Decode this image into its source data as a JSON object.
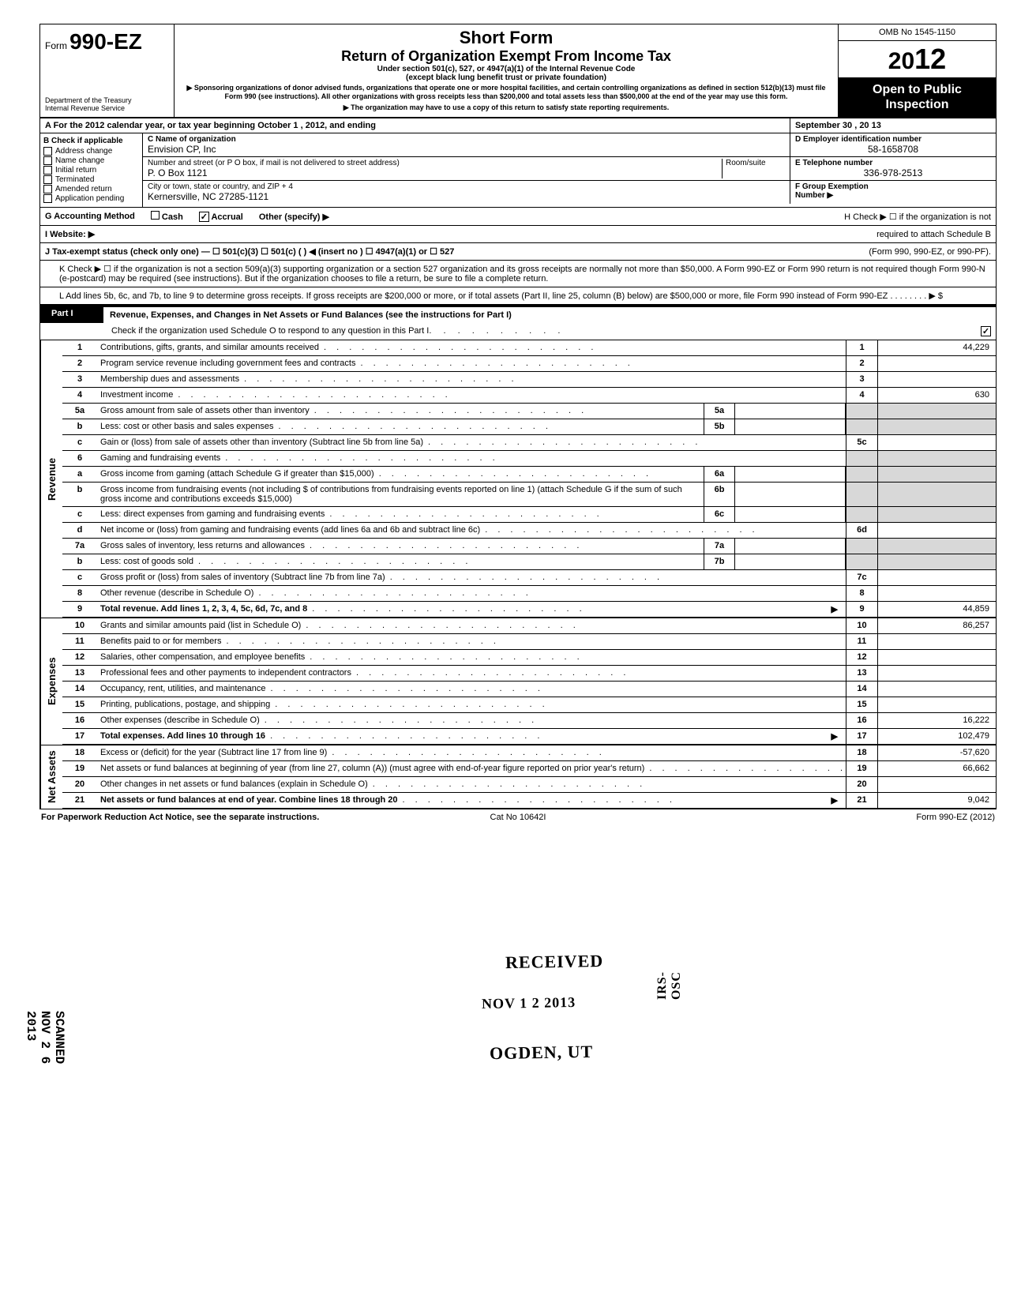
{
  "header": {
    "form_prefix": "Form",
    "form_number": "990-EZ",
    "dept1": "Department of the Treasury",
    "dept2": "Internal Revenue Service",
    "title1": "Short Form",
    "title2": "Return of Organization Exempt From Income Tax",
    "subtitle1": "Under section 501(c), 527, or 4947(a)(1) of the Internal Revenue Code",
    "subtitle2": "(except black lung benefit trust or private foundation)",
    "fineprint": "▶ Sponsoring organizations of donor advised funds, organizations that operate one or more hospital facilities, and certain controlling organizations as defined in section 512(b)(13) must file Form 990 (see instructions). All other organizations with gross receipts less than $200,000 and total assets less than $500,000 at the end of the year may use this form.",
    "satisfy": "▶ The organization may have to use a copy of this return to satisfy state reporting requirements.",
    "omb": "OMB No 1545-1150",
    "year_prefix": "20",
    "year_bold": "12",
    "open1": "Open to Public",
    "open2": "Inspection"
  },
  "rowA": {
    "left": "A  For the 2012 calendar year, or tax year beginning                    October 1               , 2012, and ending",
    "right": "September 30            , 20     13"
  },
  "colB": {
    "header": "B  Check if applicable",
    "items": [
      "Address change",
      "Name change",
      "Initial return",
      "Terminated",
      "Amended return",
      "Application pending"
    ]
  },
  "org": {
    "c_label": "C  Name of organization",
    "c_value": "Envision CP, Inc",
    "d_label": "D  Employer identification number",
    "d_value": "58-1658708",
    "addr_label": "Number and street (or P O  box, if mail is not delivered to street address)",
    "addr_value": "P. O  Box 1121",
    "room_label": "Room/suite",
    "e_label": "E  Telephone number",
    "e_value": "336-978-2513",
    "city_label": "City or town, state or country, and ZIP + 4",
    "city_value": "Kernersville, NC 27285-1121",
    "f_label": "F  Group Exemption",
    "f_label2": "Number  ▶"
  },
  "rowG": {
    "g": "G  Accounting Method",
    "cash": "Cash",
    "accrual": "Accrual",
    "other": "Other (specify) ▶",
    "h": "H  Check ▶ ☐ if the organization is not"
  },
  "rowI": {
    "i": "I   Website: ▶",
    "h2": "required to attach Schedule B"
  },
  "rowJ": {
    "j": "J  Tax-exempt status (check only one) —  ☐ 501(c)(3)    ☐ 501(c) (          )  ◀ (insert no ) ☐ 4947(a)(1) or      ☐ 527",
    "j2": "(Form 990, 990-EZ, or 990-PF)."
  },
  "rowK": "K  Check ▶   ☐   if the organization is not a section 509(a)(3) supporting organization or a section 527 organization and its gross receipts are normally not more than $50,000. A Form 990-EZ or Form 990 return is not required though Form 990-N (e-postcard) may be required (see instructions). But if the organization chooses to file a return, be sure to file a complete return.",
  "rowL": "L  Add lines 5b, 6c, and 7b, to line 9 to determine gross receipts. If gross receipts are $200,000 or more, or if total assets (Part II, line 25, column (B) below) are $500,000 or more, file Form 990 instead of Form 990-EZ     .     .     .     .     .     .     .     .     ▶  $",
  "part1": {
    "label": "Part I",
    "title": "Revenue, Expenses, and Changes in Net Assets or Fund Balances (see the instructions for Part I)",
    "check_o": "Check if the organization used Schedule O to respond to any question in this Part I"
  },
  "sections": {
    "revenue": "Revenue",
    "expenses": "Expenses",
    "netassets": "Net Assets"
  },
  "lines": [
    {
      "no": "1",
      "desc": "Contributions, gifts, grants, and similar amounts received",
      "end_no": "1",
      "end_val": "44,229"
    },
    {
      "no": "2",
      "desc": "Program service revenue including government fees and contracts",
      "end_no": "2",
      "end_val": ""
    },
    {
      "no": "3",
      "desc": "Membership dues and assessments",
      "end_no": "3",
      "end_val": ""
    },
    {
      "no": "4",
      "desc": "Investment income",
      "end_no": "4",
      "end_val": "630"
    },
    {
      "no": "5a",
      "desc": "Gross amount from sale of assets other than inventory",
      "mid_no": "5a",
      "shaded": true
    },
    {
      "no": "b",
      "desc": "Less: cost or other basis and sales expenses",
      "mid_no": "5b",
      "shaded": true
    },
    {
      "no": "c",
      "desc": "Gain or (loss) from sale of assets other than inventory (Subtract line 5b from line 5a)",
      "end_no": "5c",
      "end_val": ""
    },
    {
      "no": "6",
      "desc": "Gaming and fundraising events",
      "shaded": true,
      "shaded_full": true
    },
    {
      "no": "a",
      "desc": "Gross income from gaming (attach Schedule G if greater than $15,000)",
      "mid_no": "6a",
      "shaded": true
    },
    {
      "no": "b",
      "desc": "Gross income from fundraising events (not including  $                       of contributions from fundraising events reported on line 1) (attach Schedule G if the sum of such gross income and contributions exceeds $15,000)",
      "mid_no": "6b",
      "shaded": true
    },
    {
      "no": "c",
      "desc": "Less: direct expenses from gaming and fundraising events",
      "mid_no": "6c",
      "shaded": true
    },
    {
      "no": "d",
      "desc": "Net income or (loss) from gaming and fundraising events (add lines 6a and 6b and subtract line 6c)",
      "end_no": "6d",
      "end_val": ""
    },
    {
      "no": "7a",
      "desc": "Gross sales of inventory, less returns and allowances",
      "mid_no": "7a",
      "shaded": true
    },
    {
      "no": "b",
      "desc": "Less: cost of goods sold",
      "mid_no": "7b",
      "shaded": true
    },
    {
      "no": "c",
      "desc": "Gross profit or (loss) from sales of inventory (Subtract line 7b from line 7a)",
      "end_no": "7c",
      "end_val": ""
    },
    {
      "no": "8",
      "desc": "Other revenue (describe in Schedule O)",
      "end_no": "8",
      "end_val": ""
    },
    {
      "no": "9",
      "desc": "Total revenue. Add lines 1, 2, 3, 4, 5c, 6d, 7c, and 8",
      "end_no": "9",
      "end_val": "44,859",
      "bold": true,
      "arrow": true
    }
  ],
  "exp_lines": [
    {
      "no": "10",
      "desc": "Grants and similar amounts paid (list in Schedule O)",
      "end_no": "10",
      "end_val": "86,257"
    },
    {
      "no": "11",
      "desc": "Benefits paid to or for members",
      "end_no": "11",
      "end_val": ""
    },
    {
      "no": "12",
      "desc": "Salaries, other compensation, and employee benefits",
      "end_no": "12",
      "end_val": ""
    },
    {
      "no": "13",
      "desc": "Professional fees and other payments to independent contractors",
      "end_no": "13",
      "end_val": ""
    },
    {
      "no": "14",
      "desc": "Occupancy, rent, utilities, and maintenance",
      "end_no": "14",
      "end_val": ""
    },
    {
      "no": "15",
      "desc": "Printing, publications, postage, and shipping",
      "end_no": "15",
      "end_val": ""
    },
    {
      "no": "16",
      "desc": "Other expenses (describe in Schedule O)",
      "end_no": "16",
      "end_val": "16,222"
    },
    {
      "no": "17",
      "desc": "Total expenses. Add lines 10 through 16",
      "end_no": "17",
      "end_val": "102,479",
      "bold": true,
      "arrow": true
    }
  ],
  "na_lines": [
    {
      "no": "18",
      "desc": "Excess or (deficit) for the year (Subtract line 17 from line 9)",
      "end_no": "18",
      "end_val": "-57,620"
    },
    {
      "no": "19",
      "desc": "Net assets or fund balances at beginning of year (from line 27, column (A)) (must agree with end-of-year figure reported on prior year's return)",
      "end_no": "19",
      "end_val": "66,662"
    },
    {
      "no": "20",
      "desc": "Other changes in net assets or fund balances (explain in Schedule O)",
      "end_no": "20",
      "end_val": ""
    },
    {
      "no": "21",
      "desc": "Net assets or fund balances at end of year. Combine lines 18 through 20",
      "end_no": "21",
      "end_val": "9,042",
      "bold": true,
      "arrow": true
    }
  ],
  "stamps": {
    "received": "RECEIVED",
    "date": "NOV  1 2  2013",
    "ogden": "OGDEN, UT",
    "side": "IRS-OSC"
  },
  "footer": {
    "left": "For Paperwork Reduction Act Notice, see the separate instructions.",
    "center": "Cat  No  10642I",
    "right": "Form 990-EZ  (2012)"
  },
  "scanned": "SCANNED NOV 2 6 2013"
}
